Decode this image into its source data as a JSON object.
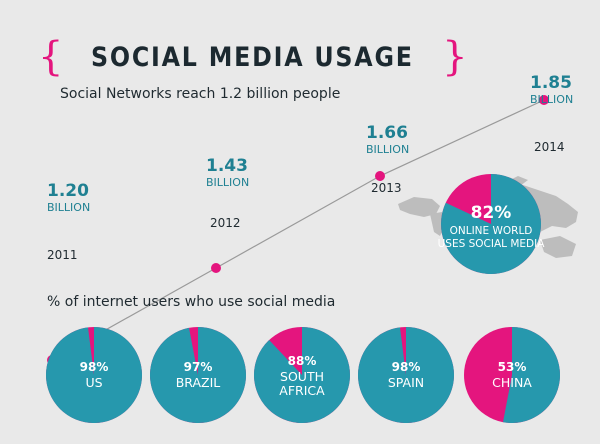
{
  "header": {
    "title": "SOCIAL MEDIA USAGE",
    "brace_open": "{",
    "brace_close": "}",
    "subtitle": "Social Networks reach 1.2 billion people"
  },
  "colors": {
    "teal": "#2698ad",
    "pink": "#e4157e",
    "text": "#1f2a30",
    "value_text": "#1f8092",
    "map": "#bdbdbd",
    "background": "#e9e9e9"
  },
  "chart_data": [
    {
      "type": "line",
      "title": "Social Networks reach 1.2 billion people",
      "x": [
        "2011",
        "2012",
        "2013",
        "2014"
      ],
      "series": [
        {
          "values": [
            1.2,
            1.43,
            1.66,
            1.85
          ]
        }
      ],
      "value_labels": [
        "1.20",
        "1.43",
        "1.66",
        "1.85"
      ],
      "unit_label": "BILLION",
      "ylim": [
        1.0,
        2.0
      ],
      "grid": false
    },
    {
      "type": "pie",
      "title": "% of internet users who use social media",
      "categories": [
        "US",
        "BRAZIL",
        "SOUTH AFRICA",
        "SPAIN",
        "CHINA"
      ],
      "values": [
        98,
        97,
        88,
        98,
        53
      ],
      "labels": [
        "98%",
        "97%",
        "88%",
        "98%",
        "53%"
      ],
      "names": [
        [
          "US"
        ],
        [
          "BRAZIL"
        ],
        [
          "SOUTH",
          "AFRICA"
        ],
        [
          "SPAIN"
        ],
        [
          "CHINA"
        ]
      ]
    },
    {
      "type": "pie",
      "values": [
        82
      ],
      "labels": [
        "82%"
      ],
      "lines": [
        "ONLINE WORLD",
        "USES SOCIAL MEDIA"
      ],
      "icon": "world-map-icon"
    }
  ]
}
